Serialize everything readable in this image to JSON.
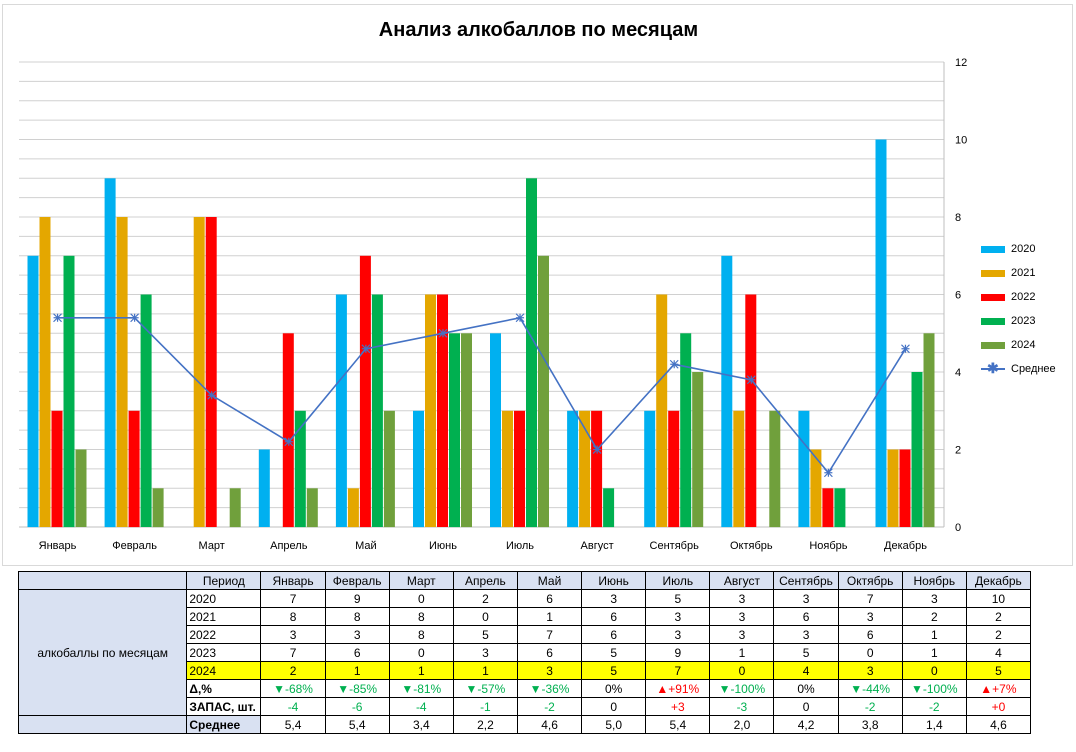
{
  "chart_data": {
    "type": "bar",
    "title": "Анализ алкобаллов по месяцам",
    "categories": [
      "Январь",
      "Февраль",
      "Март",
      "Апрель",
      "Май",
      "Июнь",
      "Июль",
      "Август",
      "Сентябрь",
      "Октябрь",
      "Ноябрь",
      "Декабрь"
    ],
    "series": [
      {
        "name": "2020",
        "color": "#00b0f0",
        "values": [
          7,
          9,
          0,
          2,
          6,
          3,
          5,
          3,
          3,
          7,
          3,
          10
        ]
      },
      {
        "name": "2021",
        "color": "#e4a700",
        "values": [
          8,
          8,
          8,
          0,
          1,
          6,
          3,
          3,
          6,
          3,
          2,
          2
        ]
      },
      {
        "name": "2022",
        "color": "#ff0000",
        "values": [
          3,
          3,
          8,
          5,
          7,
          6,
          3,
          3,
          3,
          6,
          1,
          2
        ]
      },
      {
        "name": "2023",
        "color": "#00b050",
        "values": [
          7,
          6,
          0,
          3,
          6,
          5,
          9,
          1,
          5,
          0,
          1,
          4
        ]
      },
      {
        "name": "2024",
        "color": "#70a03c",
        "values": [
          2,
          1,
          1,
          1,
          3,
          5,
          7,
          0,
          4,
          3,
          0,
          5
        ]
      }
    ],
    "line_series": {
      "name": "Среднее",
      "color": "#4472c4",
      "marker": "star",
      "values": [
        5.4,
        5.4,
        3.4,
        2.2,
        4.6,
        5.0,
        5.4,
        2.0,
        4.2,
        3.8,
        1.4,
        4.6
      ]
    },
    "ylim": [
      0,
      12
    ],
    "yticks": [
      "0",
      "2",
      "4",
      "6",
      "8",
      "10",
      "12"
    ],
    "y_axis_side": "right",
    "minor_grid_step": 0.5,
    "legend_position": "right"
  },
  "table": {
    "period_label": "Период",
    "group_label": "алкобаллы по месяцам",
    "months": [
      "Январь",
      "Февраль",
      "Март",
      "Апрель",
      "Май",
      "Июнь",
      "Июль",
      "Август",
      "Сентябрь",
      "Октябрь",
      "Ноябрь",
      "Декабрь"
    ],
    "rows": [
      {
        "label": "2020",
        "values": [
          "7",
          "9",
          "0",
          "2",
          "6",
          "3",
          "5",
          "3",
          "3",
          "7",
          "3",
          "10"
        ]
      },
      {
        "label": "2021",
        "values": [
          "8",
          "8",
          "8",
          "0",
          "1",
          "6",
          "3",
          "3",
          "6",
          "3",
          "2",
          "2"
        ]
      },
      {
        "label": "2022",
        "values": [
          "3",
          "3",
          "8",
          "5",
          "7",
          "6",
          "3",
          "3",
          "3",
          "6",
          "1",
          "2"
        ]
      },
      {
        "label": "2023",
        "values": [
          "7",
          "6",
          "0",
          "3",
          "6",
          "5",
          "9",
          "1",
          "5",
          "0",
          "1",
          "4"
        ]
      },
      {
        "label": "2024",
        "values": [
          "2",
          "1",
          "1",
          "1",
          "3",
          "5",
          "7",
          "0",
          "4",
          "3",
          "0",
          "5"
        ]
      }
    ],
    "delta": {
      "label": "Δ,%",
      "values": [
        "▼-68%",
        "▼-85%",
        "▼-81%",
        "▼-57%",
        "▼-36%",
        "0%",
        "▲+91%",
        "▼-100%",
        "0%",
        "▼-44%",
        "▼-100%",
        "▲+7%"
      ],
      "types": [
        "down",
        "down",
        "down",
        "down",
        "down",
        "neutral",
        "up",
        "down",
        "neutral",
        "down",
        "down",
        "up"
      ]
    },
    "stock": {
      "label": "ЗАПАС, шт.",
      "values": [
        "-4",
        "-6",
        "-4",
        "-1",
        "-2",
        "0",
        "+3",
        "-3",
        "0",
        "-2",
        "-2",
        "+0"
      ],
      "types": [
        "down",
        "down",
        "down",
        "down",
        "down",
        "neutral",
        "up",
        "down",
        "neutral",
        "down",
        "down",
        "up"
      ]
    },
    "average": {
      "label": "Среднее",
      "values": [
        "5,4",
        "5,4",
        "3,4",
        "2,2",
        "4,6",
        "5,0",
        "5,4",
        "2,0",
        "4,2",
        "3,8",
        "1,4",
        "4,6"
      ]
    }
  }
}
